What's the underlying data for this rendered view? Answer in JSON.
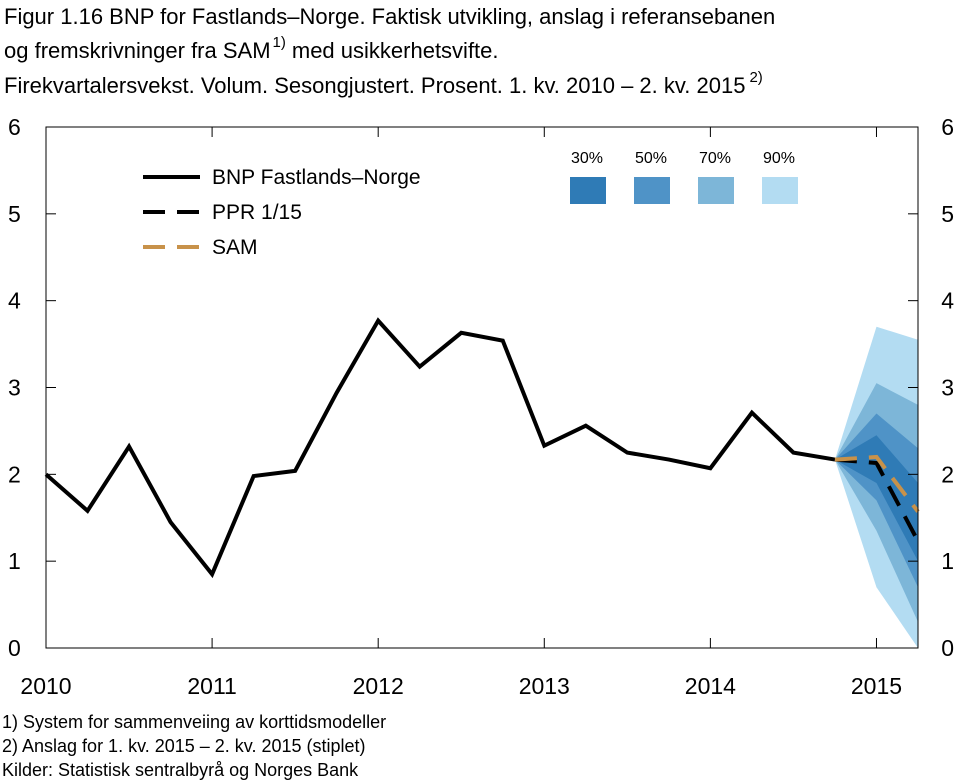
{
  "chart_data": {
    "type": "line",
    "title": [
      "Figur 1.16 BNP for Fastlands–Norge. Faktisk utvikling, anslag i referansebanen",
      "og fremskrivninger fra SAM",
      "1)",
      "med usikkerhetsvifte.",
      "Firekvartalersvekst. Volum. Sesongjustert. Prosent. 1. kv. 2010 – 2. kv. 2015",
      "2)"
    ],
    "categories": [
      "2010",
      null,
      null,
      null,
      "2011",
      null,
      null,
      null,
      "2012",
      null,
      null,
      null,
      "2013",
      null,
      null,
      null,
      "2014",
      null,
      null,
      null,
      "2015",
      null
    ],
    "series": [
      {
        "name": "BNP Fastlands–Norge",
        "color": "#000000",
        "dash": false,
        "values": [
          2.0,
          1.58,
          2.32,
          1.45,
          0.85,
          1.98,
          2.04,
          2.94,
          3.77,
          3.24,
          3.63,
          3.54,
          2.33,
          2.56,
          2.25,
          2.17,
          2.07,
          2.71,
          2.25,
          2.17,
          null,
          null
        ]
      },
      {
        "name": "PPR 1/15",
        "color": "#000000",
        "dash": true,
        "values": [
          null,
          null,
          null,
          null,
          null,
          null,
          null,
          null,
          null,
          null,
          null,
          null,
          null,
          null,
          null,
          null,
          null,
          null,
          null,
          2.17,
          2.13,
          1.23
        ]
      },
      {
        "name": "SAM",
        "color": "#c8924a",
        "dash": true,
        "values": [
          null,
          null,
          null,
          null,
          null,
          null,
          null,
          null,
          null,
          null,
          null,
          null,
          null,
          null,
          null,
          null,
          null,
          null,
          null,
          2.17,
          2.2,
          1.57
        ]
      }
    ],
    "fan": [
      {
        "name": "30%",
        "color": "#2f7bb6",
        "upper": [
          null,
          null,
          null,
          null,
          null,
          null,
          null,
          null,
          null,
          null,
          null,
          null,
          null,
          null,
          null,
          null,
          null,
          null,
          null,
          2.17,
          2.45,
          1.9
        ],
        "lower": [
          null,
          null,
          null,
          null,
          null,
          null,
          null,
          null,
          null,
          null,
          null,
          null,
          null,
          null,
          null,
          null,
          null,
          null,
          null,
          2.17,
          1.9,
          1.0
        ]
      },
      {
        "name": "50%",
        "color": "#4f93c7",
        "upper": [
          null,
          null,
          null,
          null,
          null,
          null,
          null,
          null,
          null,
          null,
          null,
          null,
          null,
          null,
          null,
          null,
          null,
          null,
          null,
          2.17,
          2.7,
          2.3
        ],
        "lower": [
          null,
          null,
          null,
          null,
          null,
          null,
          null,
          null,
          null,
          null,
          null,
          null,
          null,
          null,
          null,
          null,
          null,
          null,
          null,
          2.17,
          1.7,
          0.7
        ]
      },
      {
        "name": "70%",
        "color": "#7db6d8",
        "upper": [
          null,
          null,
          null,
          null,
          null,
          null,
          null,
          null,
          null,
          null,
          null,
          null,
          null,
          null,
          null,
          null,
          null,
          null,
          null,
          2.17,
          3.05,
          2.8
        ],
        "lower": [
          null,
          null,
          null,
          null,
          null,
          null,
          null,
          null,
          null,
          null,
          null,
          null,
          null,
          null,
          null,
          null,
          null,
          null,
          null,
          2.17,
          1.35,
          0.3
        ]
      },
      {
        "name": "90%",
        "color": "#b3dcf2",
        "upper": [
          null,
          null,
          null,
          null,
          null,
          null,
          null,
          null,
          null,
          null,
          null,
          null,
          null,
          null,
          null,
          null,
          null,
          null,
          null,
          2.17,
          3.7,
          3.55
        ],
        "lower": [
          null,
          null,
          null,
          null,
          null,
          null,
          null,
          null,
          null,
          null,
          null,
          null,
          null,
          null,
          null,
          null,
          null,
          null,
          null,
          2.17,
          0.7,
          0.0
        ]
      }
    ],
    "ylim": [
      0,
      6
    ],
    "yticks": [
      0,
      1,
      2,
      3,
      4,
      5,
      6
    ],
    "y2lim": [
      0,
      6
    ],
    "y2ticks": [
      0,
      1,
      2,
      3,
      4,
      5,
      6
    ],
    "grid": false,
    "footnotes": [
      "1) System for sammenveiing av korttidsmodeller",
      "2) Anslag for 1. kv. 2015 – 2. kv. 2015  (stiplet)",
      "Kilder: Statistisk sentralbyrå og Norges Bank"
    ]
  }
}
